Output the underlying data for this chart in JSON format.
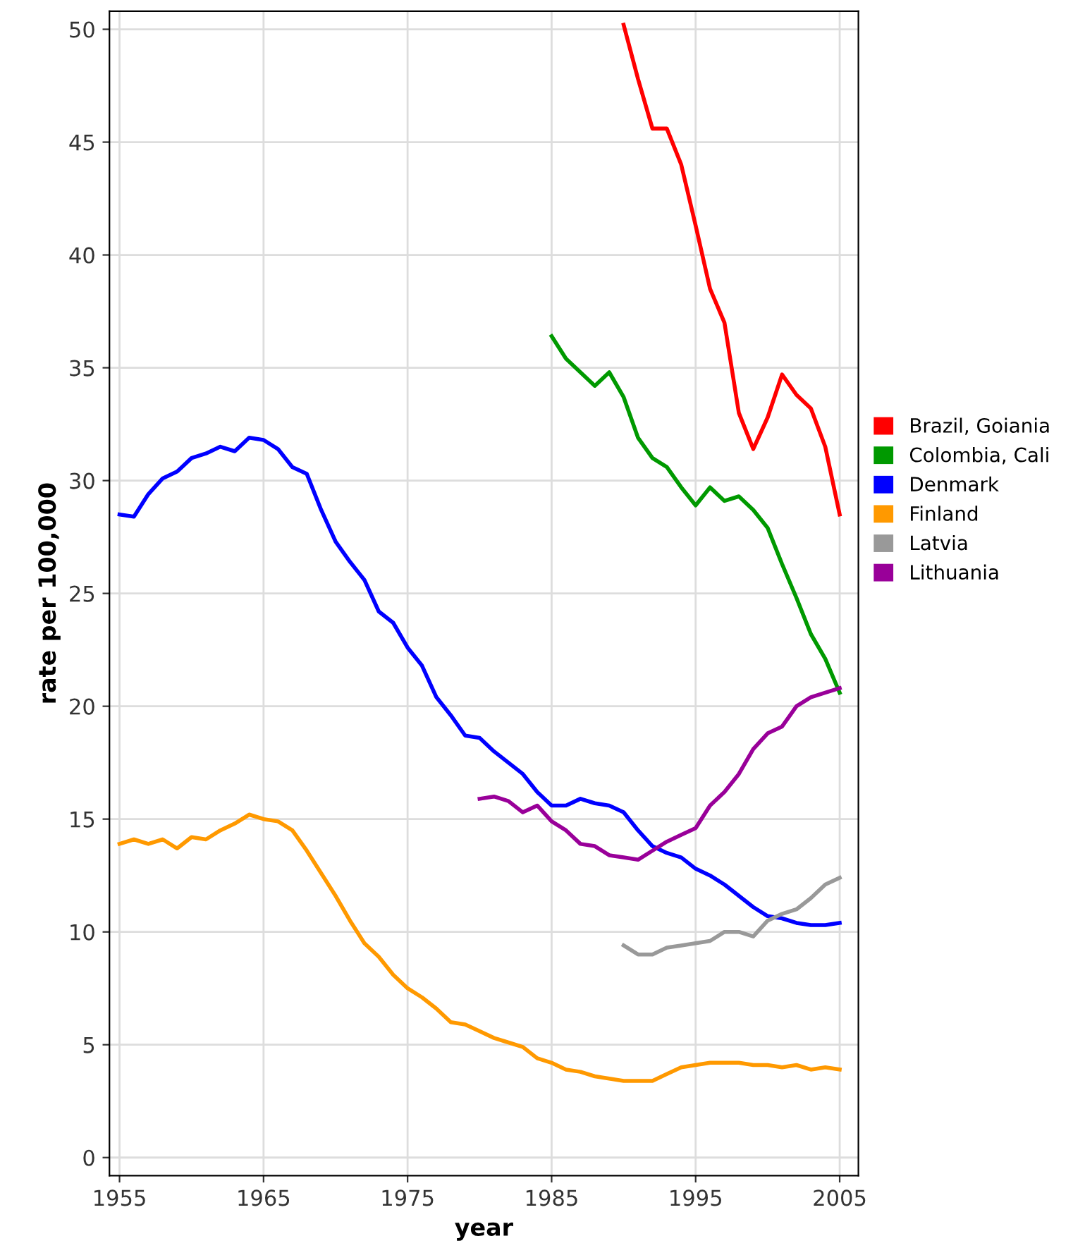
{
  "chart_data": {
    "type": "line",
    "xlabel": "year",
    "ylabel": "rate per 100,000",
    "xlim": [
      1954.3,
      2006.3
    ],
    "ylim": [
      -0.8,
      50.8
    ],
    "xticks": [
      1955,
      1965,
      1975,
      1985,
      1995,
      2005
    ],
    "yticks": [
      0,
      5,
      10,
      15,
      20,
      25,
      30,
      35,
      40,
      45,
      50
    ],
    "grid": true,
    "legend": "right",
    "line_style": "solid",
    "series": [
      {
        "name": "Brazil, Goiania",
        "color": "#ff0000",
        "x": [
          1990,
          1991,
          1992,
          1993,
          1994,
          1995,
          1996,
          1997,
          1998,
          1999,
          2000,
          2001,
          2002,
          2003,
          2004,
          2005
        ],
        "values": [
          50.2,
          47.8,
          45.6,
          45.6,
          44.0,
          41.3,
          38.5,
          37.0,
          33.0,
          31.4,
          32.8,
          34.7,
          33.8,
          33.2,
          31.5,
          28.5
        ]
      },
      {
        "name": "Colombia, Cali",
        "color": "#009900",
        "x": [
          1985,
          1986,
          1987,
          1988,
          1989,
          1990,
          1991,
          1992,
          1993,
          1994,
          1995,
          1996,
          1997,
          1998,
          1999,
          2000,
          2001,
          2002,
          2003,
          2004,
          2005
        ],
        "values": [
          36.4,
          35.4,
          34.8,
          34.2,
          34.8,
          33.7,
          31.9,
          31.0,
          30.6,
          29.7,
          28.9,
          29.7,
          29.1,
          29.3,
          28.7,
          27.9,
          26.3,
          24.8,
          23.2,
          22.1,
          20.6
        ]
      },
      {
        "name": "Denmark",
        "color": "#0000ff",
        "x": [
          1955,
          1956,
          1957,
          1958,
          1959,
          1960,
          1961,
          1962,
          1963,
          1964,
          1965,
          1966,
          1967,
          1968,
          1969,
          1970,
          1971,
          1972,
          1973,
          1974,
          1975,
          1976,
          1977,
          1978,
          1979,
          1980,
          1981,
          1982,
          1983,
          1984,
          1985,
          1986,
          1987,
          1988,
          1989,
          1990,
          1991,
          1992,
          1993,
          1994,
          1995,
          1996,
          1997,
          1998,
          1999,
          2000,
          2001,
          2002,
          2003,
          2004,
          2005
        ],
        "values": [
          28.5,
          28.4,
          29.4,
          30.1,
          30.4,
          31.0,
          31.2,
          31.5,
          31.3,
          31.9,
          31.8,
          31.4,
          30.6,
          30.3,
          28.7,
          27.3,
          26.4,
          25.6,
          24.2,
          23.7,
          22.6,
          21.8,
          20.4,
          19.6,
          18.7,
          18.6,
          18.0,
          17.5,
          17.0,
          16.2,
          15.6,
          15.6,
          15.9,
          15.7,
          15.6,
          15.3,
          14.5,
          13.8,
          13.5,
          13.3,
          12.8,
          12.5,
          12.1,
          11.6,
          11.1,
          10.7,
          10.6,
          10.4,
          10.3,
          10.3,
          10.4
        ]
      },
      {
        "name": "Finland",
        "color": "#ff9900",
        "x": [
          1955,
          1956,
          1957,
          1958,
          1959,
          1960,
          1961,
          1962,
          1963,
          1964,
          1965,
          1966,
          1967,
          1968,
          1969,
          1970,
          1971,
          1972,
          1973,
          1974,
          1975,
          1976,
          1977,
          1978,
          1979,
          1980,
          1981,
          1982,
          1983,
          1984,
          1985,
          1986,
          1987,
          1988,
          1989,
          1990,
          1991,
          1992,
          1993,
          1994,
          1995,
          1996,
          1997,
          1998,
          1999,
          2000,
          2001,
          2002,
          2003,
          2004,
          2005
        ],
        "values": [
          13.9,
          14.1,
          13.9,
          14.1,
          13.7,
          14.2,
          14.1,
          14.5,
          14.8,
          15.2,
          15.0,
          14.9,
          14.5,
          13.6,
          12.6,
          11.6,
          10.5,
          9.5,
          8.9,
          8.1,
          7.5,
          7.1,
          6.6,
          6.0,
          5.9,
          5.6,
          5.3,
          5.1,
          4.9,
          4.4,
          4.2,
          3.9,
          3.8,
          3.6,
          3.5,
          3.4,
          3.4,
          3.4,
          3.7,
          4.0,
          4.1,
          4.2,
          4.2,
          4.2,
          4.1,
          4.1,
          4.0,
          4.1,
          3.9,
          4.0,
          3.9
        ]
      },
      {
        "name": "Latvia",
        "color": "#999999",
        "x": [
          1990,
          1991,
          1992,
          1993,
          1994,
          1995,
          1996,
          1997,
          1998,
          1999,
          2000,
          2001,
          2002,
          2003,
          2004,
          2005
        ],
        "values": [
          9.4,
          9.0,
          9.0,
          9.3,
          9.4,
          9.5,
          9.6,
          10.0,
          10.0,
          9.8,
          10.5,
          10.8,
          11.0,
          11.5,
          12.1,
          12.4
        ]
      },
      {
        "name": "Lithuania",
        "color": "#990099",
        "x": [
          1980,
          1981,
          1982,
          1983,
          1984,
          1985,
          1986,
          1987,
          1988,
          1989,
          1990,
          1991,
          1992,
          1993,
          1994,
          1995,
          1996,
          1997,
          1998,
          1999,
          2000,
          2001,
          2002,
          2003,
          2004,
          2005
        ],
        "values": [
          15.9,
          16.0,
          15.8,
          15.3,
          15.6,
          14.9,
          14.5,
          13.9,
          13.8,
          13.4,
          13.3,
          13.2,
          13.6,
          14.0,
          14.3,
          14.6,
          15.6,
          16.2,
          17.0,
          18.1,
          18.8,
          19.1,
          20.0,
          20.4,
          20.6,
          20.8
        ]
      }
    ]
  }
}
